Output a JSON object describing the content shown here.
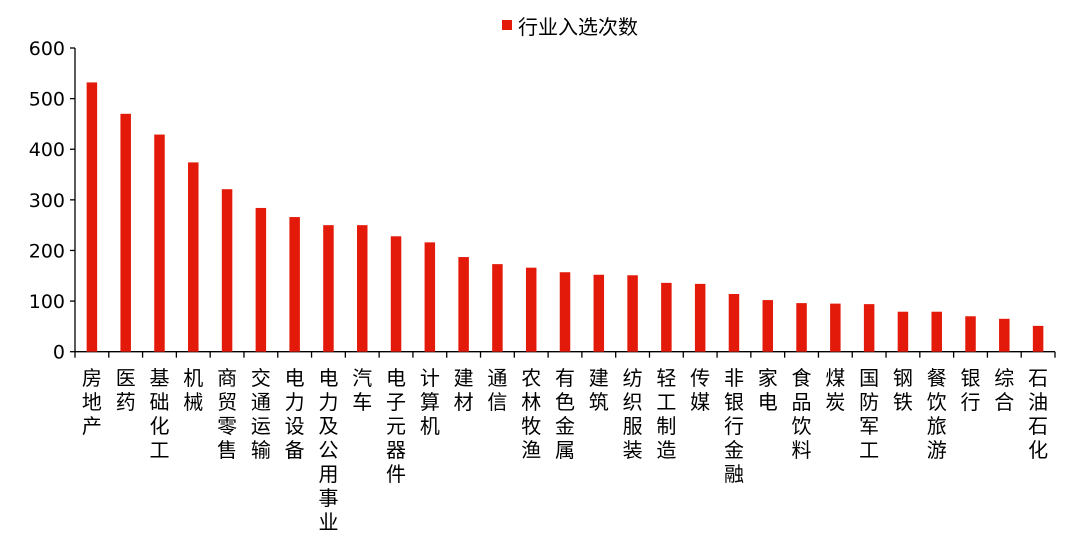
{
  "chart_data": {
    "type": "bar",
    "legend": {
      "position": "top",
      "entries": [
        "行业入选次数"
      ]
    },
    "series": [
      {
        "name": "行业入选次数",
        "color": "#e31a0a",
        "values": [
          532,
          470,
          429,
          374,
          321,
          284,
          266,
          250,
          250,
          228,
          216,
          187,
          173,
          166,
          157,
          152,
          151,
          136,
          134,
          114,
          102,
          96,
          95,
          94,
          79,
          79,
          70,
          65,
          51
        ]
      }
    ],
    "categories": [
      "房地产",
      "医药",
      "基础化工",
      "机械",
      "商贸零售",
      "交通运输",
      "电力设备",
      "电力及公用事业",
      "汽车",
      "电子元器件",
      "计算机",
      "建材",
      "通信",
      "农林牧渔",
      "有色金属",
      "建筑",
      "纺织服装",
      "轻工制造",
      "传媒",
      "非银行金融",
      "家电",
      "食品饮料",
      "煤炭",
      "国防军工",
      "钢铁",
      "餐饮旅游",
      "银行",
      "综合",
      "石油石化"
    ],
    "yticks": [
      "0",
      "100",
      "200",
      "300",
      "400",
      "500",
      "600"
    ],
    "ylim": [
      0,
      600
    ],
    "grid": false,
    "title": "",
    "xlabel": "",
    "ylabel": ""
  }
}
